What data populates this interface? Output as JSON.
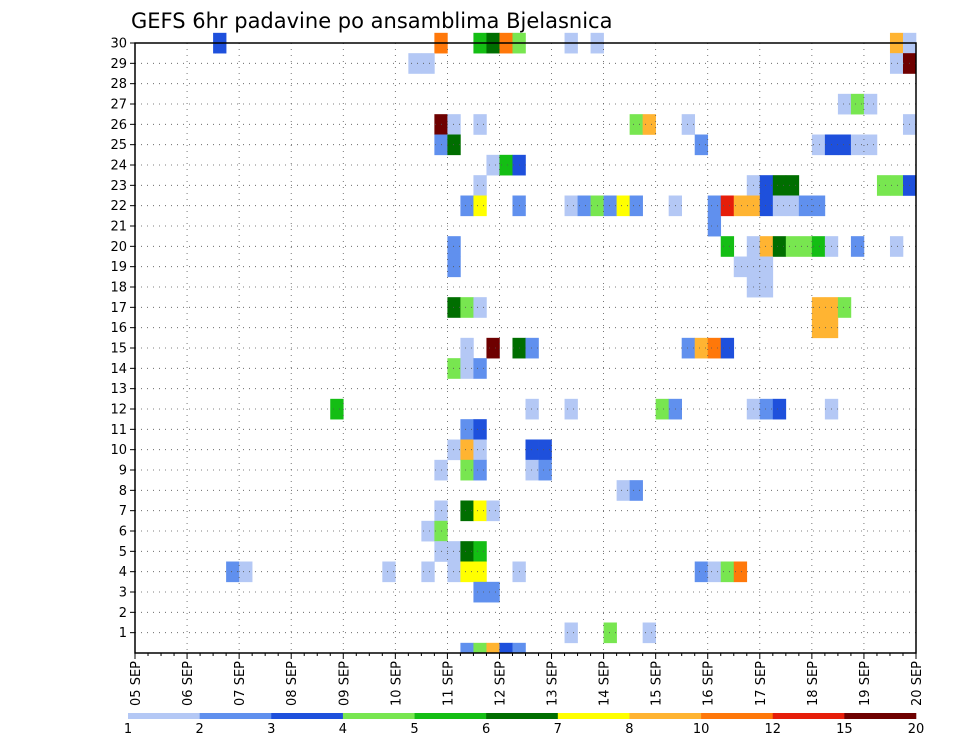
{
  "chart_data": {
    "type": "heatmap",
    "title": "GEFS 6hr padavine po ansamblima Bjelasnica",
    "xlabel": "",
    "ylabel": "",
    "x_tick_labels": [
      "05 SEP",
      "06 SEP",
      "07 SEP",
      "08 SEP",
      "09 SEP",
      "10 SEP",
      "11 SEP",
      "12 SEP",
      "13 SEP",
      "14 SEP",
      "15 SEP",
      "16 SEP",
      "17 SEP",
      "18 SEP",
      "19 SEP",
      "20 SEP"
    ],
    "x_step": "6h",
    "x_range": [
      "05 SEP 00Z",
      "20 SEP 00Z"
    ],
    "y_tick_labels": [
      "1",
      "2",
      "3",
      "4",
      "5",
      "6",
      "7",
      "8",
      "9",
      "10",
      "11",
      "12",
      "13",
      "14",
      "15",
      "16",
      "17",
      "18",
      "19",
      "20",
      "21",
      "22",
      "23",
      "24",
      "25",
      "26",
      "27",
      "28",
      "29",
      "30"
    ],
    "y_range": [
      0,
      30
    ],
    "grid": true,
    "colorbar": {
      "labels": [
        "1",
        "2",
        "3",
        "4",
        "5",
        "6",
        "7",
        "8",
        "10",
        "12",
        "15",
        "20"
      ],
      "colors": [
        "#b4c8f5",
        "#6090ee",
        "#1e50dc",
        "#78e650",
        "#14be14",
        "#006e00",
        "#ffff00",
        "#ffb432",
        "#ff780a",
        "#e61e0a",
        "#6e0000"
      ]
    },
    "cells": [
      {
        "member": 30,
        "t": "06 SEP 12Z",
        "bin": 3
      },
      {
        "member": 30,
        "t": "10 SEP 18Z",
        "bin": 9
      },
      {
        "member": 30,
        "t": "11 SEP 12Z",
        "bin": 5
      },
      {
        "member": 30,
        "t": "11 SEP 18Z",
        "bin": 6
      },
      {
        "member": 30,
        "t": "12 SEP 00Z",
        "bin": 9
      },
      {
        "member": 30,
        "t": "12 SEP 06Z",
        "bin": 4
      },
      {
        "member": 30,
        "t": "13 SEP 06Z",
        "bin": 1
      },
      {
        "member": 30,
        "t": "13 SEP 18Z",
        "bin": 1
      },
      {
        "member": 30,
        "t": "19 SEP 12Z",
        "bin": 8
      },
      {
        "member": 30,
        "t": "19 SEP 18Z",
        "bin": 1
      },
      {
        "member": 29,
        "t": "10 SEP 06Z",
        "bin": 1
      },
      {
        "member": 29,
        "t": "10 SEP 12Z",
        "bin": 1
      },
      {
        "member": 29,
        "t": "19 SEP 12Z",
        "bin": 1
      },
      {
        "member": 29,
        "t": "19 SEP 18Z",
        "bin": 11
      },
      {
        "member": 27,
        "t": "18 SEP 12Z",
        "bin": 1
      },
      {
        "member": 27,
        "t": "18 SEP 18Z",
        "bin": 4
      },
      {
        "member": 27,
        "t": "19 SEP 00Z",
        "bin": 1
      },
      {
        "member": 26,
        "t": "10 SEP 18Z",
        "bin": 11
      },
      {
        "member": 26,
        "t": "11 SEP 00Z",
        "bin": 1
      },
      {
        "member": 26,
        "t": "11 SEP 12Z",
        "bin": 1
      },
      {
        "member": 26,
        "t": "14 SEP 12Z",
        "bin": 4
      },
      {
        "member": 26,
        "t": "14 SEP 18Z",
        "bin": 8
      },
      {
        "member": 26,
        "t": "15 SEP 12Z",
        "bin": 1
      },
      {
        "member": 26,
        "t": "19 SEP 18Z",
        "bin": 1
      },
      {
        "member": 25,
        "t": "10 SEP 18Z",
        "bin": 2
      },
      {
        "member": 25,
        "t": "11 SEP 00Z",
        "bin": 6
      },
      {
        "member": 25,
        "t": "15 SEP 18Z",
        "bin": 2
      },
      {
        "member": 25,
        "t": "18 SEP 00Z",
        "bin": 1
      },
      {
        "member": 25,
        "t": "18 SEP 06Z",
        "bin": 3
      },
      {
        "member": 25,
        "t": "18 SEP 12Z",
        "bin": 3
      },
      {
        "member": 25,
        "t": "18 SEP 18Z",
        "bin": 1
      },
      {
        "member": 25,
        "t": "19 SEP 00Z",
        "bin": 1
      },
      {
        "member": 24,
        "t": "11 SEP 18Z",
        "bin": 1
      },
      {
        "member": 24,
        "t": "12 SEP 00Z",
        "bin": 5
      },
      {
        "member": 24,
        "t": "12 SEP 06Z",
        "bin": 3
      },
      {
        "member": 23,
        "t": "11 SEP 12Z",
        "bin": 1
      },
      {
        "member": 23,
        "t": "16 SEP 18Z",
        "bin": 1
      },
      {
        "member": 23,
        "t": "17 SEP 00Z",
        "bin": 3
      },
      {
        "member": 23,
        "t": "17 SEP 06Z",
        "bin": 6
      },
      {
        "member": 23,
        "t": "17 SEP 12Z",
        "bin": 6
      },
      {
        "member": 23,
        "t": "19 SEP 06Z",
        "bin": 4
      },
      {
        "member": 23,
        "t": "19 SEP 12Z",
        "bin": 4
      },
      {
        "member": 23,
        "t": "19 SEP 18Z",
        "bin": 3
      },
      {
        "member": 22,
        "t": "11 SEP 06Z",
        "bin": 2
      },
      {
        "member": 22,
        "t": "11 SEP 12Z",
        "bin": 7
      },
      {
        "member": 22,
        "t": "12 SEP 06Z",
        "bin": 2
      },
      {
        "member": 22,
        "t": "13 SEP 06Z",
        "bin": 1
      },
      {
        "member": 22,
        "t": "13 SEP 12Z",
        "bin": 2
      },
      {
        "member": 22,
        "t": "13 SEP 18Z",
        "bin": 4
      },
      {
        "member": 22,
        "t": "14 SEP 00Z",
        "bin": 2
      },
      {
        "member": 22,
        "t": "14 SEP 06Z",
        "bin": 7
      },
      {
        "member": 22,
        "t": "14 SEP 12Z",
        "bin": 2
      },
      {
        "member": 22,
        "t": "15 SEP 06Z",
        "bin": 1
      },
      {
        "member": 22,
        "t": "16 SEP 00Z",
        "bin": 2
      },
      {
        "member": 22,
        "t": "16 SEP 06Z",
        "bin": 10
      },
      {
        "member": 22,
        "t": "16 SEP 12Z",
        "bin": 8
      },
      {
        "member": 22,
        "t": "16 SEP 18Z",
        "bin": 8
      },
      {
        "member": 22,
        "t": "17 SEP 00Z",
        "bin": 3
      },
      {
        "member": 22,
        "t": "17 SEP 06Z",
        "bin": 1
      },
      {
        "member": 22,
        "t": "17 SEP 12Z",
        "bin": 1
      },
      {
        "member": 22,
        "t": "17 SEP 18Z",
        "bin": 2
      },
      {
        "member": 22,
        "t": "18 SEP 00Z",
        "bin": 2
      },
      {
        "member": 21,
        "t": "16 SEP 00Z",
        "bin": 2
      },
      {
        "member": 20,
        "t": "11 SEP 00Z",
        "bin": 2
      },
      {
        "member": 20,
        "t": "16 SEP 06Z",
        "bin": 5
      },
      {
        "member": 20,
        "t": "16 SEP 18Z",
        "bin": 1
      },
      {
        "member": 20,
        "t": "17 SEP 00Z",
        "bin": 8
      },
      {
        "member": 20,
        "t": "17 SEP 06Z",
        "bin": 6
      },
      {
        "member": 20,
        "t": "17 SEP 12Z",
        "bin": 4
      },
      {
        "member": 20,
        "t": "17 SEP 18Z",
        "bin": 4
      },
      {
        "member": 20,
        "t": "18 SEP 00Z",
        "bin": 5
      },
      {
        "member": 20,
        "t": "18 SEP 06Z",
        "bin": 1
      },
      {
        "member": 20,
        "t": "18 SEP 18Z",
        "bin": 2
      },
      {
        "member": 20,
        "t": "19 SEP 12Z",
        "bin": 1
      },
      {
        "member": 19,
        "t": "11 SEP 00Z",
        "bin": 2
      },
      {
        "member": 19,
        "t": "16 SEP 12Z",
        "bin": 1
      },
      {
        "member": 19,
        "t": "16 SEP 18Z",
        "bin": 1
      },
      {
        "member": 19,
        "t": "17 SEP 00Z",
        "bin": 1
      },
      {
        "member": 18,
        "t": "16 SEP 18Z",
        "bin": 1
      },
      {
        "member": 18,
        "t": "17 SEP 00Z",
        "bin": 1
      },
      {
        "member": 17,
        "t": "11 SEP 00Z",
        "bin": 6
      },
      {
        "member": 17,
        "t": "11 SEP 06Z",
        "bin": 4
      },
      {
        "member": 17,
        "t": "11 SEP 12Z",
        "bin": 1
      },
      {
        "member": 17,
        "t": "18 SEP 00Z",
        "bin": 8
      },
      {
        "member": 17,
        "t": "18 SEP 06Z",
        "bin": 8
      },
      {
        "member": 17,
        "t": "18 SEP 12Z",
        "bin": 4
      },
      {
        "member": 16,
        "t": "18 SEP 00Z",
        "bin": 8
      },
      {
        "member": 16,
        "t": "18 SEP 06Z",
        "bin": 8
      },
      {
        "member": 15,
        "t": "11 SEP 06Z",
        "bin": 1
      },
      {
        "member": 15,
        "t": "11 SEP 18Z",
        "bin": 11
      },
      {
        "member": 15,
        "t": "12 SEP 06Z",
        "bin": 6
      },
      {
        "member": 15,
        "t": "12 SEP 12Z",
        "bin": 2
      },
      {
        "member": 15,
        "t": "15 SEP 12Z",
        "bin": 2
      },
      {
        "member": 15,
        "t": "15 SEP 18Z",
        "bin": 8
      },
      {
        "member": 15,
        "t": "16 SEP 00Z",
        "bin": 9
      },
      {
        "member": 15,
        "t": "16 SEP 06Z",
        "bin": 3
      },
      {
        "member": 14,
        "t": "11 SEP 00Z",
        "bin": 4
      },
      {
        "member": 14,
        "t": "11 SEP 06Z",
        "bin": 1
      },
      {
        "member": 14,
        "t": "11 SEP 12Z",
        "bin": 2
      },
      {
        "member": 12,
        "t": "08 SEP 18Z",
        "bin": 5
      },
      {
        "member": 12,
        "t": "12 SEP 12Z",
        "bin": 1
      },
      {
        "member": 12,
        "t": "13 SEP 06Z",
        "bin": 1
      },
      {
        "member": 12,
        "t": "15 SEP 00Z",
        "bin": 4
      },
      {
        "member": 12,
        "t": "15 SEP 06Z",
        "bin": 2
      },
      {
        "member": 12,
        "t": "16 SEP 18Z",
        "bin": 1
      },
      {
        "member": 12,
        "t": "17 SEP 00Z",
        "bin": 2
      },
      {
        "member": 12,
        "t": "17 SEP 06Z",
        "bin": 3
      },
      {
        "member": 12,
        "t": "18 SEP 06Z",
        "bin": 1
      },
      {
        "member": 11,
        "t": "11 SEP 06Z",
        "bin": 2
      },
      {
        "member": 11,
        "t": "11 SEP 12Z",
        "bin": 3
      },
      {
        "member": 10,
        "t": "11 SEP 00Z",
        "bin": 1
      },
      {
        "member": 10,
        "t": "11 SEP 06Z",
        "bin": 8
      },
      {
        "member": 10,
        "t": "11 SEP 12Z",
        "bin": 1
      },
      {
        "member": 10,
        "t": "12 SEP 12Z",
        "bin": 3
      },
      {
        "member": 10,
        "t": "12 SEP 18Z",
        "bin": 3
      },
      {
        "member": 9,
        "t": "10 SEP 18Z",
        "bin": 1
      },
      {
        "member": 9,
        "t": "11 SEP 06Z",
        "bin": 4
      },
      {
        "member": 9,
        "t": "11 SEP 12Z",
        "bin": 2
      },
      {
        "member": 9,
        "t": "12 SEP 12Z",
        "bin": 1
      },
      {
        "member": 9,
        "t": "12 SEP 18Z",
        "bin": 2
      },
      {
        "member": 8,
        "t": "14 SEP 06Z",
        "bin": 1
      },
      {
        "member": 8,
        "t": "14 SEP 12Z",
        "bin": 2
      },
      {
        "member": 7,
        "t": "10 SEP 18Z",
        "bin": 1
      },
      {
        "member": 7,
        "t": "11 SEP 06Z",
        "bin": 6
      },
      {
        "member": 7,
        "t": "11 SEP 12Z",
        "bin": 7
      },
      {
        "member": 7,
        "t": "11 SEP 18Z",
        "bin": 1
      },
      {
        "member": 6,
        "t": "10 SEP 12Z",
        "bin": 1
      },
      {
        "member": 6,
        "t": "10 SEP 18Z",
        "bin": 4
      },
      {
        "member": 5,
        "t": "10 SEP 18Z",
        "bin": 1
      },
      {
        "member": 5,
        "t": "11 SEP 00Z",
        "bin": 1
      },
      {
        "member": 5,
        "t": "11 SEP 06Z",
        "bin": 6
      },
      {
        "member": 5,
        "t": "11 SEP 12Z",
        "bin": 5
      },
      {
        "member": 4,
        "t": "06 SEP 18Z",
        "bin": 2
      },
      {
        "member": 4,
        "t": "07 SEP 00Z",
        "bin": 1
      },
      {
        "member": 4,
        "t": "09 SEP 18Z",
        "bin": 1
      },
      {
        "member": 4,
        "t": "10 SEP 12Z",
        "bin": 1
      },
      {
        "member": 4,
        "t": "11 SEP 00Z",
        "bin": 1
      },
      {
        "member": 4,
        "t": "11 SEP 06Z",
        "bin": 7
      },
      {
        "member": 4,
        "t": "11 SEP 12Z",
        "bin": 7
      },
      {
        "member": 4,
        "t": "12 SEP 06Z",
        "bin": 1
      },
      {
        "member": 4,
        "t": "15 SEP 18Z",
        "bin": 2
      },
      {
        "member": 4,
        "t": "16 SEP 00Z",
        "bin": 1
      },
      {
        "member": 4,
        "t": "16 SEP 06Z",
        "bin": 4
      },
      {
        "member": 4,
        "t": "16 SEP 12Z",
        "bin": 9
      },
      {
        "member": 3,
        "t": "11 SEP 12Z",
        "bin": 2
      },
      {
        "member": 3,
        "t": "11 SEP 18Z",
        "bin": 2
      },
      {
        "member": 1,
        "t": "13 SEP 06Z",
        "bin": 1
      },
      {
        "member": 1,
        "t": "14 SEP 00Z",
        "bin": 4
      },
      {
        "member": 1,
        "t": "14 SEP 18Z",
        "bin": 1
      },
      {
        "member": 0,
        "t": "11 SEP 06Z",
        "bin": 2
      },
      {
        "member": 0,
        "t": "11 SEP 12Z",
        "bin": 4
      },
      {
        "member": 0,
        "t": "11 SEP 18Z",
        "bin": 8
      },
      {
        "member": 0,
        "t": "12 SEP 00Z",
        "bin": 3
      },
      {
        "member": 0,
        "t": "12 SEP 06Z",
        "bin": 2
      }
    ]
  }
}
